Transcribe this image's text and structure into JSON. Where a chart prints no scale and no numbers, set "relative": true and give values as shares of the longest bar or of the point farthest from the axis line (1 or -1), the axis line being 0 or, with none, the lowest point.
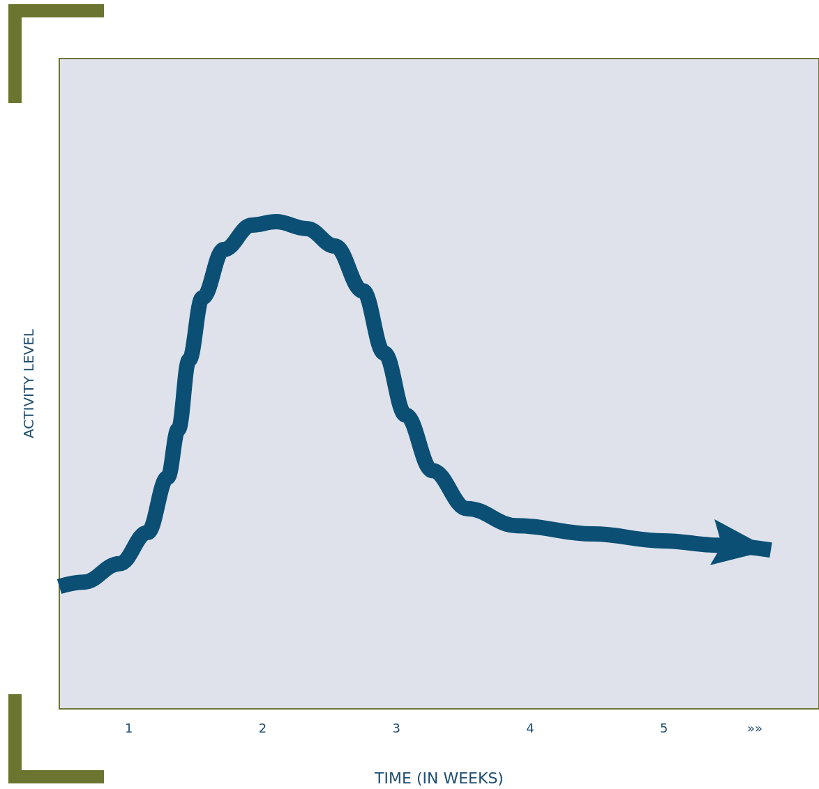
{
  "chart_data": {
    "type": "line",
    "xlabel": "TIME (IN WEEKS)",
    "ylabel": "ACTIVITY LEVEL",
    "relative": true,
    "color": "#0b4f75",
    "xlim": [
      0.48,
      6.16
    ],
    "xticks": [
      1,
      2,
      3,
      4,
      5,
      {
        "value": 5.68,
        "label": "»»"
      }
    ],
    "x": [
      0.48,
      0.66,
      0.93,
      1.14,
      1.29,
      1.37,
      1.45,
      1.55,
      1.71,
      1.92,
      2.1,
      2.33,
      2.54,
      2.75,
      2.91,
      3.07,
      3.27,
      3.53,
      3.9,
      4.47,
      4.99,
      5.41,
      5.8
    ],
    "values": [
      0.251,
      0.26,
      0.298,
      0.362,
      0.475,
      0.574,
      0.716,
      0.844,
      0.943,
      0.993,
      1.0,
      0.986,
      0.95,
      0.858,
      0.73,
      0.603,
      0.489,
      0.411,
      0.376,
      0.359,
      0.345,
      0.336,
      0.326
    ]
  }
}
